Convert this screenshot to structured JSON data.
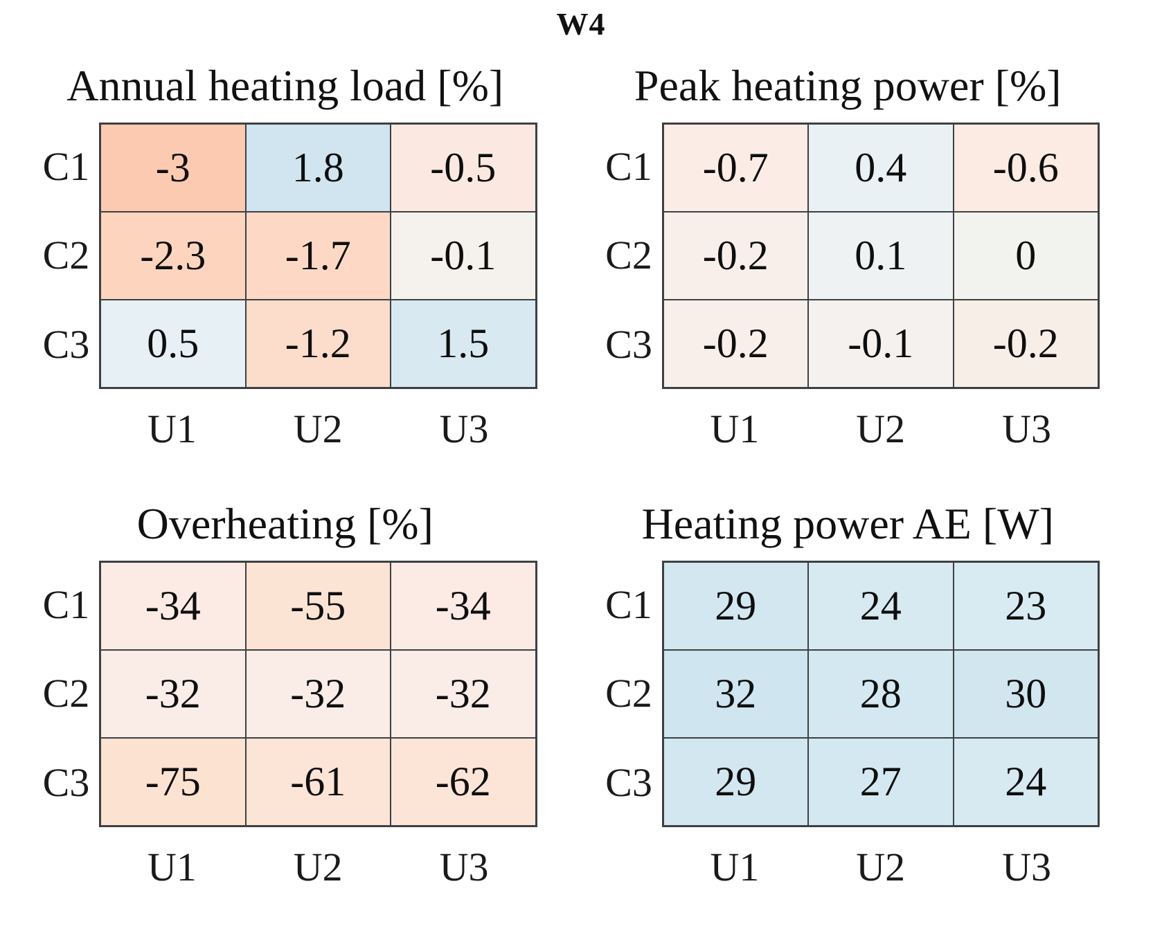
{
  "figure_title": "W4",
  "row_labels": [
    "C1",
    "C2",
    "C3"
  ],
  "col_labels": [
    "U1",
    "U2",
    "U3"
  ],
  "panels": [
    {
      "title": "Annual heating load [%]",
      "cells": [
        {
          "value": "-3",
          "color": "#fccab0"
        },
        {
          "value": "1.8",
          "color": "#d0e5ef"
        },
        {
          "value": "-0.5",
          "color": "#fbe9e1"
        },
        {
          "value": "-2.3",
          "color": "#fdd5bf"
        },
        {
          "value": "-1.7",
          "color": "#fdd9c5"
        },
        {
          "value": "-0.1",
          "color": "#f5f1ed"
        },
        {
          "value": "0.5",
          "color": "#e7f0f4"
        },
        {
          "value": "-1.2",
          "color": "#fcdccb"
        },
        {
          "value": "1.5",
          "color": "#d8e9f1"
        }
      ]
    },
    {
      "title": "Peak heating power [%]",
      "cells": [
        {
          "value": "-0.7",
          "color": "#fbece6"
        },
        {
          "value": "0.4",
          "color": "#e9f1f4"
        },
        {
          "value": "-0.6",
          "color": "#fbebe3"
        },
        {
          "value": "-0.2",
          "color": "#f8efeb"
        },
        {
          "value": "0.1",
          "color": "#eff2f2"
        },
        {
          "value": "0",
          "color": "#f2f2ef"
        },
        {
          "value": "-0.2",
          "color": "#f8efeb"
        },
        {
          "value": "-0.1",
          "color": "#f4f1ee"
        },
        {
          "value": "-0.2",
          "color": "#f8eee8"
        }
      ]
    },
    {
      "title": "Overheating [%]",
      "cells": [
        {
          "value": "-34",
          "color": "#fbebe4"
        },
        {
          "value": "-55",
          "color": "#fce4d5"
        },
        {
          "value": "-34",
          "color": "#fbebe4"
        },
        {
          "value": "-32",
          "color": "#faece7"
        },
        {
          "value": "-32",
          "color": "#faece7"
        },
        {
          "value": "-32",
          "color": "#faece7"
        },
        {
          "value": "-75",
          "color": "#fce2d0"
        },
        {
          "value": "-61",
          "color": "#fce5d7"
        },
        {
          "value": "-62",
          "color": "#fce5d6"
        }
      ]
    },
    {
      "title": "Heating power AE [W]",
      "cells": [
        {
          "value": "29",
          "color": "#d2e7f0"
        },
        {
          "value": "24",
          "color": "#d7e9f1"
        },
        {
          "value": "23",
          "color": "#d8eaf2"
        },
        {
          "value": "32",
          "color": "#cfe5ef"
        },
        {
          "value": "28",
          "color": "#d3e8f0"
        },
        {
          "value": "30",
          "color": "#d1e6ef"
        },
        {
          "value": "29",
          "color": "#d2e7f0"
        },
        {
          "value": "27",
          "color": "#d4e8f1"
        },
        {
          "value": "24",
          "color": "#d7e9f1"
        }
      ]
    }
  ],
  "chart_data": [
    {
      "type": "heatmap",
      "title": "Annual heating load [%]",
      "rows": [
        "C1",
        "C2",
        "C3"
      ],
      "columns": [
        "U1",
        "U2",
        "U3"
      ],
      "values": [
        [
          -3,
          1.8,
          -0.5
        ],
        [
          -2.3,
          -1.7,
          -0.1
        ],
        [
          0.5,
          -1.2,
          1.5
        ]
      ],
      "colormap": "negative=warm-orange, positive=light-blue, near-zero=white"
    },
    {
      "type": "heatmap",
      "title": "Peak heating power [%]",
      "rows": [
        "C1",
        "C2",
        "C3"
      ],
      "columns": [
        "U1",
        "U2",
        "U3"
      ],
      "values": [
        [
          -0.7,
          0.4,
          -0.6
        ],
        [
          -0.2,
          0.1,
          0
        ],
        [
          -0.2,
          -0.1,
          -0.2
        ]
      ],
      "colormap": "negative=warm-orange, positive=light-blue, near-zero=white"
    },
    {
      "type": "heatmap",
      "title": "Overheating [%]",
      "rows": [
        "C1",
        "C2",
        "C3"
      ],
      "columns": [
        "U1",
        "U2",
        "U3"
      ],
      "values": [
        [
          -34,
          -55,
          -34
        ],
        [
          -32,
          -32,
          -32
        ],
        [
          -75,
          -61,
          -62
        ]
      ],
      "colormap": "negative=warm-orange, positive=light-blue, near-zero=white"
    },
    {
      "type": "heatmap",
      "title": "Heating power AE [W]",
      "rows": [
        "C1",
        "C2",
        "C3"
      ],
      "columns": [
        "U1",
        "U2",
        "U3"
      ],
      "values": [
        [
          29,
          24,
          23
        ],
        [
          32,
          28,
          30
        ],
        [
          29,
          27,
          24
        ]
      ],
      "colormap": "negative=warm-orange, positive=light-blue, near-zero=white"
    }
  ]
}
